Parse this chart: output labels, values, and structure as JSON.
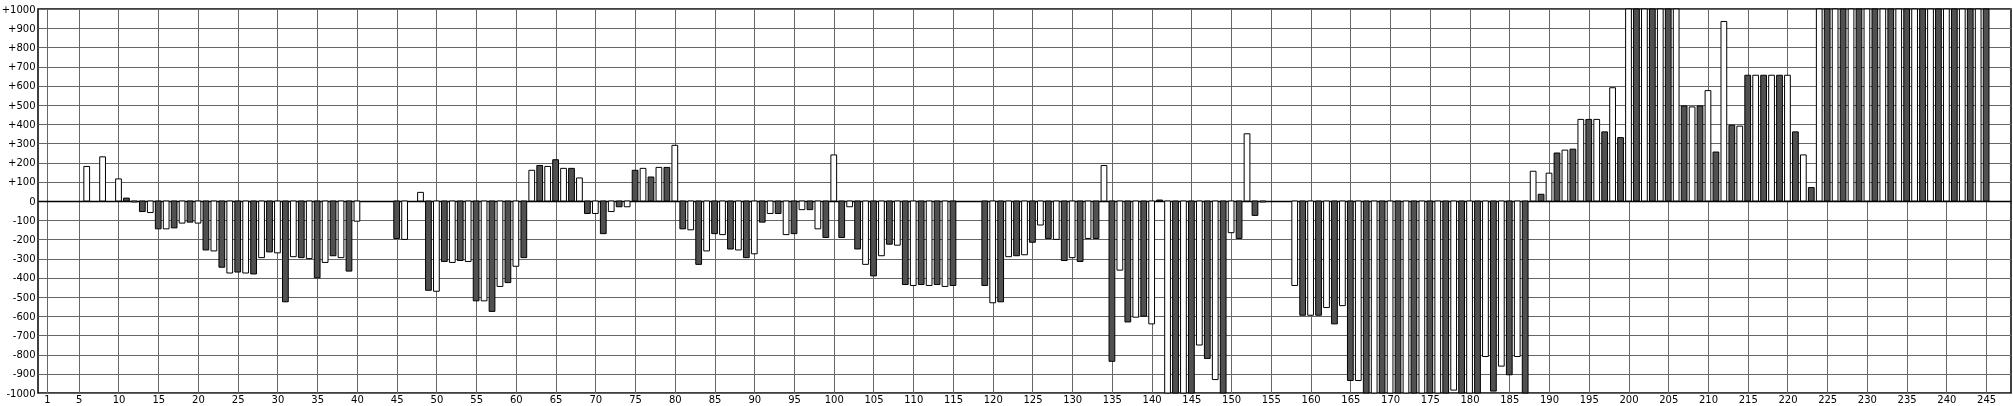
{
  "chart_data": {
    "type": "bar",
    "x": [
      6,
      8,
      10,
      11,
      12,
      13,
      14,
      15,
      16,
      17,
      18,
      19,
      20,
      21,
      22,
      23,
      24,
      25,
      26,
      27,
      28,
      29,
      30,
      31,
      32,
      33,
      34,
      35,
      36,
      37,
      38,
      39,
      40,
      45,
      46,
      48,
      49,
      50,
      51,
      52,
      53,
      54,
      55,
      56,
      57,
      58,
      59,
      60,
      61,
      62,
      63,
      64,
      65,
      66,
      67,
      68,
      69,
      70,
      71,
      72,
      73,
      74,
      75,
      76,
      77,
      78,
      79,
      80,
      81,
      82,
      83,
      84,
      85,
      86,
      87,
      88,
      89,
      90,
      91,
      92,
      93,
      94,
      95,
      96,
      97,
      98,
      99,
      100,
      101,
      102,
      103,
      104,
      105,
      106,
      107,
      108,
      109,
      110,
      111,
      112,
      113,
      114,
      115,
      119,
      120,
      121,
      122,
      123,
      124,
      125,
      126,
      127,
      128,
      129,
      130,
      131,
      132,
      133,
      134,
      135,
      136,
      137,
      138,
      139,
      140,
      141,
      142,
      143,
      144,
      145,
      146,
      147,
      148,
      149,
      150,
      151,
      152,
      153,
      154,
      158,
      159,
      160,
      161,
      162,
      163,
      164,
      165,
      166,
      167,
      168,
      169,
      170,
      171,
      172,
      173,
      174,
      175,
      176,
      177,
      178,
      179,
      180,
      181,
      182,
      183,
      184,
      185,
      186,
      187,
      188,
      189,
      190,
      191,
      192,
      193,
      194,
      195,
      196,
      197,
      198,
      199,
      200,
      201,
      202,
      203,
      204,
      205,
      206,
      207,
      208,
      209,
      210,
      211,
      212,
      213,
      214,
      215,
      216,
      217,
      218,
      219,
      220,
      221,
      222,
      223,
      224,
      225,
      226,
      227,
      228,
      229,
      230,
      231,
      232,
      233,
      234,
      235,
      236,
      237,
      238,
      239,
      240,
      241,
      242,
      243,
      244,
      245
    ],
    "values": [
      180,
      230,
      115,
      15,
      -5,
      -55,
      -60,
      -145,
      -145,
      -140,
      -115,
      -110,
      -115,
      -255,
      -260,
      -345,
      -375,
      -370,
      -375,
      -380,
      -295,
      -265,
      -270,
      -525,
      -290,
      -295,
      -300,
      -400,
      -320,
      -285,
      -295,
      -365,
      -105,
      -195,
      -200,
      45,
      -465,
      -470,
      -315,
      -320,
      -310,
      -315,
      -520,
      -520,
      -575,
      -445,
      -425,
      -340,
      -295,
      160,
      185,
      180,
      215,
      170,
      170,
      120,
      -65,
      -65,
      -170,
      -55,
      -30,
      -30,
      160,
      170,
      125,
      175,
      175,
      290,
      -145,
      -150,
      -330,
      -260,
      -170,
      -175,
      -250,
      -255,
      -295,
      -275,
      -110,
      -65,
      -65,
      -175,
      -170,
      -45,
      -45,
      -145,
      -190,
      240,
      -190,
      -30,
      -250,
      -330,
      -390,
      -285,
      -225,
      -230,
      -435,
      -440,
      -435,
      -440,
      -435,
      -445,
      -440,
      -440,
      -530,
      -525,
      -290,
      -285,
      -280,
      -215,
      -125,
      -195,
      -200,
      -310,
      -295,
      -315,
      -195,
      -195,
      185,
      -835,
      -360,
      -630,
      -605,
      -600,
      -640,
      5,
      -1000,
      -1000,
      -1000,
      -1000,
      -750,
      -820,
      -930,
      -1000,
      -165,
      -195,
      350,
      -75,
      -5,
      -440,
      -595,
      -595,
      -595,
      -555,
      -640,
      -545,
      -935,
      -935,
      -1000,
      -1000,
      -1000,
      -1000,
      -1000,
      -1000,
      -1000,
      -1000,
      -1000,
      -1000,
      -1000,
      -985,
      -1000,
      -1000,
      -1000,
      -810,
      -990,
      -860,
      -905,
      -810,
      -1000,
      155,
      35,
      145,
      250,
      265,
      270,
      425,
      425,
      425,
      360,
      590,
      330,
      1000,
      1000,
      1000,
      1000,
      1000,
      1000,
      1000,
      495,
      490,
      495,
      575,
      255,
      935,
      395,
      390,
      655,
      655,
      655,
      655,
      655,
      655,
      360,
      240,
      70,
      1000,
      1000,
      1000,
      1000,
      1000,
      1000,
      1000,
      1000,
      1000,
      1000,
      1000,
      1000,
      1000,
      1000,
      1000,
      1000,
      1000,
      1000,
      1000,
      1000,
      1000,
      1000
    ],
    "colors": [
      "#ffffff",
      "#ffffff",
      "#ffffff",
      "#505050",
      "#ffffff",
      "#505050",
      "#ffffff",
      "#505050",
      "#ffffff",
      "#505050",
      "#ffffff",
      "#505050",
      "#ffffff",
      "#505050",
      "#ffffff",
      "#505050",
      "#ffffff",
      "#505050",
      "#ffffff",
      "#505050",
      "#ffffff",
      "#505050",
      "#ffffff",
      "#505050",
      "#ffffff",
      "#505050",
      "#ffffff",
      "#505050",
      "#ffffff",
      "#505050",
      "#ffffff",
      "#505050",
      "#ffffff",
      "#505050",
      "#ffffff",
      "#ffffff",
      "#505050",
      "#ffffff",
      "#505050",
      "#ffffff",
      "#505050",
      "#ffffff",
      "#505050",
      "#ffffff",
      "#505050",
      "#ffffff",
      "#505050",
      "#ffffff",
      "#505050",
      "#ffffff",
      "#505050",
      "#ffffff",
      "#505050",
      "#ffffff",
      "#505050",
      "#ffffff",
      "#505050",
      "#ffffff",
      "#505050",
      "#ffffff",
      "#505050",
      "#ffffff",
      "#505050",
      "#ffffff",
      "#505050",
      "#ffffff",
      "#505050",
      "#ffffff",
      "#505050",
      "#ffffff",
      "#505050",
      "#ffffff",
      "#505050",
      "#ffffff",
      "#505050",
      "#ffffff",
      "#505050",
      "#ffffff",
      "#505050",
      "#ffffff",
      "#505050",
      "#ffffff",
      "#505050",
      "#ffffff",
      "#505050",
      "#ffffff",
      "#505050",
      "#ffffff",
      "#505050",
      "#ffffff",
      "#505050",
      "#ffffff",
      "#505050",
      "#ffffff",
      "#505050",
      "#ffffff",
      "#505050",
      "#ffffff",
      "#505050",
      "#ffffff",
      "#505050",
      "#ffffff",
      "#505050",
      "#505050",
      "#ffffff",
      "#505050",
      "#ffffff",
      "#505050",
      "#ffffff",
      "#505050",
      "#ffffff",
      "#505050",
      "#ffffff",
      "#505050",
      "#ffffff",
      "#505050",
      "#ffffff",
      "#505050",
      "#ffffff",
      "#505050",
      "#ffffff",
      "#505050",
      "#ffffff",
      "#505050",
      "#ffffff",
      "#505050",
      "#ffffff",
      "#505050",
      "#ffffff",
      "#505050",
      "#ffffff",
      "#505050",
      "#ffffff",
      "#505050",
      "#ffffff",
      "#505050",
      "#ffffff",
      "#505050",
      "#ffffff",
      "#ffffff",
      "#505050",
      "#ffffff",
      "#505050",
      "#ffffff",
      "#505050",
      "#ffffff",
      "#505050",
      "#ffffff",
      "#505050",
      "#ffffff",
      "#505050",
      "#ffffff",
      "#505050",
      "#ffffff",
      "#505050",
      "#ffffff",
      "#505050",
      "#ffffff",
      "#505050",
      "#ffffff",
      "#505050",
      "#ffffff",
      "#505050",
      "#ffffff",
      "#505050",
      "#ffffff",
      "#505050",
      "#ffffff",
      "#505050",
      "#ffffff",
      "#505050",
      "#ffffff",
      "#505050",
      "#ffffff",
      "#505050",
      "#ffffff",
      "#505050",
      "#ffffff",
      "#505050",
      "#ffffff",
      "#505050",
      "#ffffff",
      "#505050",
      "#ffffff",
      "#505050",
      "#ffffff",
      "#505050",
      "#ffffff",
      "#505050",
      "#ffffff",
      "#505050",
      "#ffffff",
      "#505050",
      "#ffffff",
      "#505050",
      "#ffffff",
      "#505050",
      "#ffffff",
      "#505050",
      "#ffffff",
      "#505050",
      "#ffffff",
      "#505050",
      "#ffffff",
      "#505050",
      "#ffffff",
      "#505050",
      "#ffffff",
      "#505050",
      "#ffffff",
      "#505050",
      "#ffffff",
      "#505050",
      "#ffffff",
      "#505050",
      "#ffffff",
      "#505050",
      "#ffffff",
      "#505050",
      "#ffffff",
      "#505050",
      "#ffffff",
      "#505050",
      "#ffffff",
      "#505050",
      "#ffffff",
      "#505050"
    ],
    "xlim": [
      0.5,
      247.5
    ],
    "xticks": [
      1,
      5,
      10,
      15,
      20,
      25,
      30,
      35,
      40,
      45,
      50,
      55,
      60,
      65,
      70,
      75,
      80,
      85,
      90,
      95,
      100,
      105,
      110,
      115,
      120,
      125,
      130,
      135,
      140,
      145,
      150,
      155,
      160,
      165,
      170,
      175,
      180,
      185,
      190,
      195,
      200,
      205,
      210,
      215,
      220,
      225,
      230,
      235,
      240,
      245
    ],
    "ylim": [
      -1000,
      1000
    ],
    "yticks": [
      -1000,
      -900,
      -800,
      -700,
      -600,
      -500,
      -400,
      -300,
      -200,
      -100,
      0,
      {
        "value": 100,
        "label": "+100"
      },
      {
        "value": 200,
        "label": "+200"
      },
      {
        "value": 300,
        "label": "+300"
      },
      {
        "value": 400,
        "label": "+400"
      },
      {
        "value": 500,
        "label": "+500"
      },
      {
        "value": 600,
        "label": "+600"
      },
      {
        "value": 700,
        "label": "+700"
      },
      {
        "value": 800,
        "label": "+800"
      },
      {
        "value": 900,
        "label": "+900"
      },
      {
        "value": 1000,
        "label": "+1000"
      }
    ],
    "grid": true
  }
}
